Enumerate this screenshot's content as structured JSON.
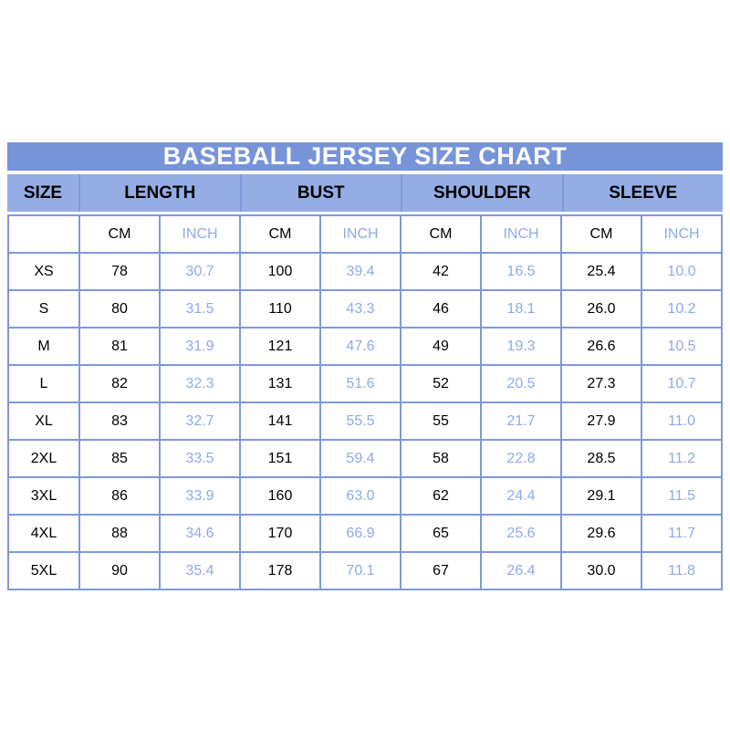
{
  "title": "BASEBALL JERSEY SIZE CHART",
  "colors": {
    "title_bar_bg": "#7794D8",
    "title_text": "#FFFFFF",
    "header_bg": "#94ADE5",
    "border": "#7D99DC",
    "inch_text": "#8FA9E8",
    "cm_text": "#000000",
    "cell_bg": "#FFFFFF"
  },
  "chart_data": {
    "type": "table",
    "title": "BASEBALL JERSEY SIZE CHART",
    "size_header": "SIZE",
    "group_headers": [
      "LENGTH",
      "BUST",
      "SHOULDER",
      "SLEEVE"
    ],
    "unit_headers": [
      "CM",
      "INCH"
    ],
    "rows": [
      [
        "XS",
        "78",
        "30.7",
        "100",
        "39.4",
        "42",
        "16.5",
        "25.4",
        "10.0"
      ],
      [
        "S",
        "80",
        "31.5",
        "110",
        "43.3",
        "46",
        "18.1",
        "26.0",
        "10.2"
      ],
      [
        "M",
        "81",
        "31.9",
        "121",
        "47.6",
        "49",
        "19.3",
        "26.6",
        "10.5"
      ],
      [
        "L",
        "82",
        "32.3",
        "131",
        "51.6",
        "52",
        "20.5",
        "27.3",
        "10.7"
      ],
      [
        "XL",
        "83",
        "32.7",
        "141",
        "55.5",
        "55",
        "21.7",
        "27.9",
        "11.0"
      ],
      [
        "2XL",
        "85",
        "33.5",
        "151",
        "59.4",
        "58",
        "22.8",
        "28.5",
        "11.2"
      ],
      [
        "3XL",
        "86",
        "33.9",
        "160",
        "63.0",
        "62",
        "24.4",
        "29.1",
        "11.5"
      ],
      [
        "4XL",
        "88",
        "34.6",
        "170",
        "66.9",
        "65",
        "25.6",
        "29.6",
        "11.7"
      ],
      [
        "5XL",
        "90",
        "35.4",
        "178",
        "70.1",
        "67",
        "26.4",
        "30.0",
        "11.8"
      ]
    ]
  }
}
